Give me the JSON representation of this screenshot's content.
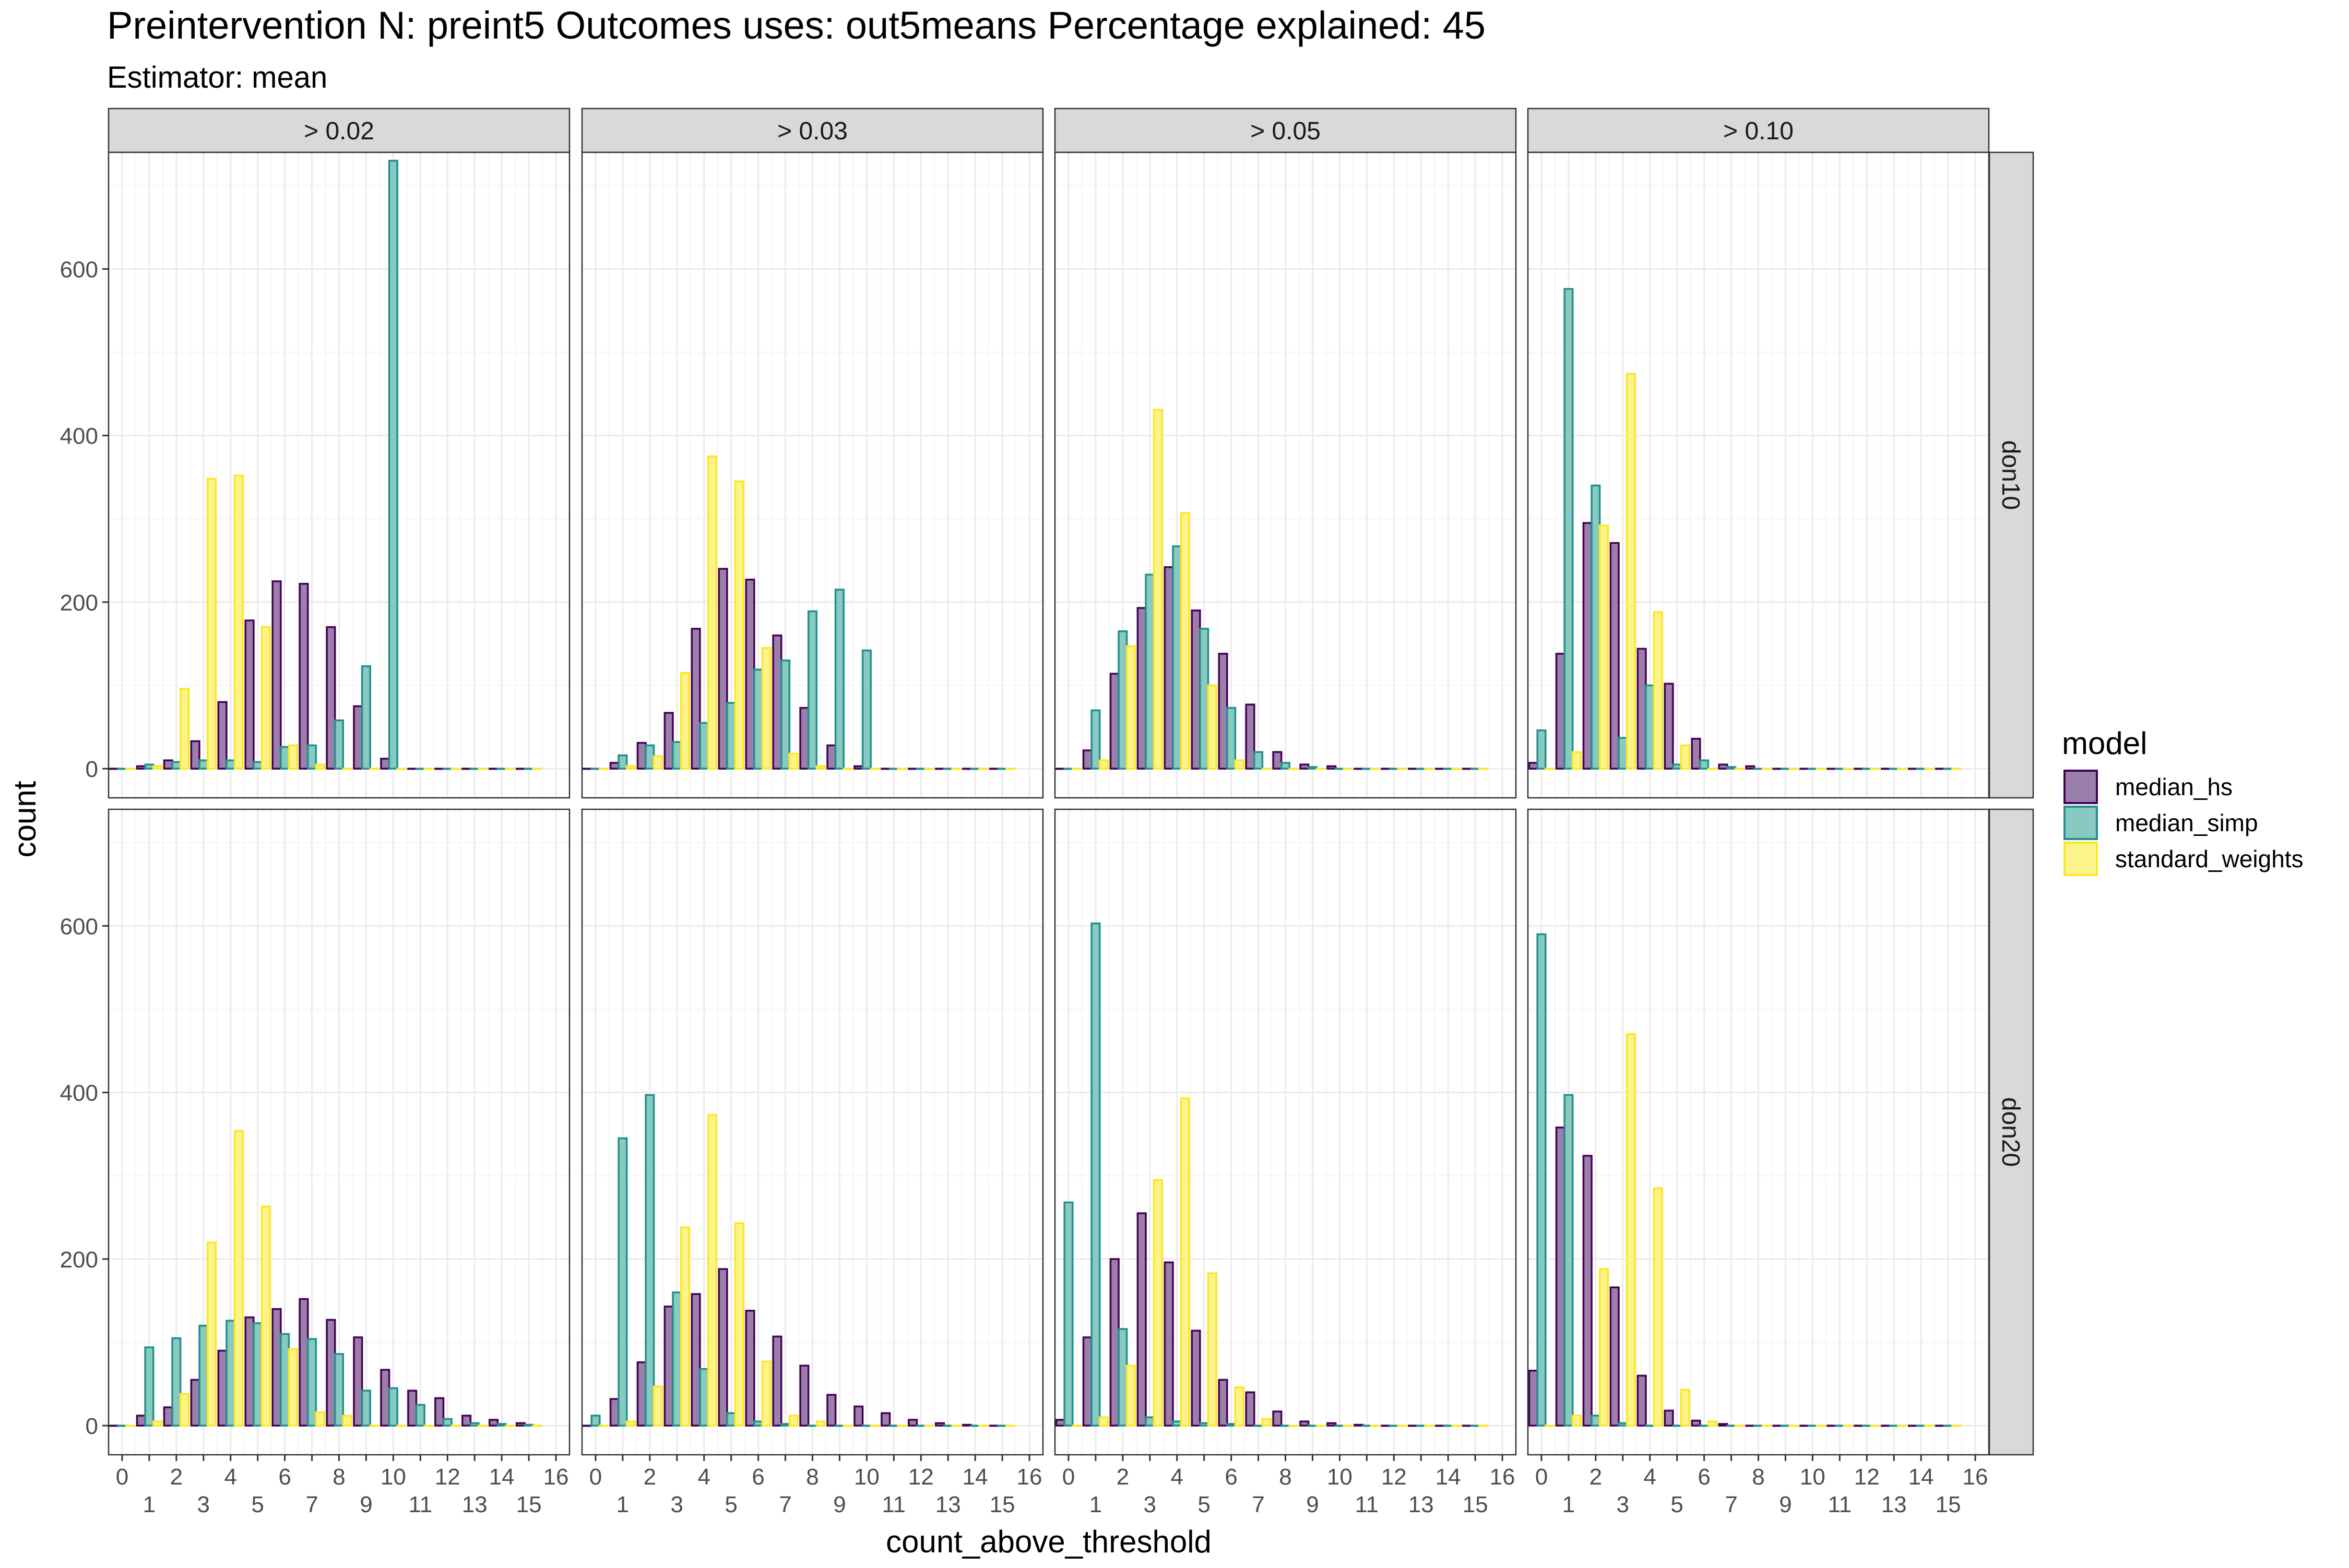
{
  "chart_data": {
    "type": "bar",
    "title": "Preintervention N: preint5 Outcomes uses: out5means Percentage explained: 45",
    "subtitle": "Estimator: mean",
    "xlabel": "count_above_threshold",
    "ylabel": "count",
    "x_ticks": [
      0,
      1,
      2,
      3,
      4,
      5,
      6,
      7,
      8,
      9,
      10,
      11,
      12,
      13,
      14,
      15,
      16
    ],
    "xlim": [
      -0.5,
      16.5
    ],
    "y_ticks": [
      0,
      200,
      400,
      600
    ],
    "ylim": [
      -35,
      740
    ],
    "grid": true,
    "legend": {
      "title": "model",
      "position": "right",
      "entries": [
        "median_hs",
        "median_simp",
        "standard_weights"
      ]
    },
    "colors": {
      "median_hs": {
        "fill": "#9B7FAB",
        "stroke": "#440154"
      },
      "median_simp": {
        "fill": "#88C9C1",
        "stroke": "#21908C"
      },
      "standard_weights": {
        "fill": "#FCF48A",
        "stroke": "#FDE725"
      },
      "strip_bg": "#D9D9D9",
      "panel_border": "#333333",
      "grid_major": "#EBEBEB",
      "grid_minor": "#F5F5F5"
    },
    "columns": [
      "> 0.02",
      "> 0.03",
      "> 0.05",
      "> 0.10"
    ],
    "rows": [
      "don10",
      "don20"
    ],
    "panels": [
      {
        "row": "don10",
        "col": "> 0.02",
        "median_hs": [
          0,
          3,
          10,
          33,
          80,
          178,
          225,
          222,
          170,
          75,
          12,
          0,
          0,
          0,
          0,
          0
        ],
        "median_simp": [
          0,
          5,
          8,
          10,
          10,
          8,
          26,
          28,
          58,
          123,
          730,
          0,
          0,
          0,
          0,
          0
        ],
        "standard_weights": [
          0,
          3,
          96,
          348,
          352,
          170,
          28,
          5,
          0,
          0,
          0,
          0,
          0,
          0,
          0,
          0
        ]
      },
      {
        "row": "don10",
        "col": "> 0.03",
        "median_hs": [
          0,
          7,
          31,
          67,
          168,
          240,
          227,
          160,
          73,
          28,
          3,
          0,
          0,
          0,
          0,
          0
        ],
        "median_simp": [
          0,
          16,
          28,
          32,
          55,
          79,
          119,
          130,
          189,
          215,
          142,
          0,
          0,
          0,
          0,
          0
        ],
        "standard_weights": [
          0,
          3,
          15,
          115,
          375,
          345,
          145,
          18,
          3,
          0,
          0,
          0,
          0,
          0,
          0,
          0
        ]
      },
      {
        "row": "don10",
        "col": "> 0.05",
        "median_hs": [
          0,
          22,
          114,
          193,
          242,
          190,
          138,
          77,
          20,
          5,
          3,
          0,
          0,
          0,
          0,
          0
        ],
        "median_simp": [
          0,
          70,
          165,
          233,
          267,
          168,
          73,
          20,
          7,
          2,
          0,
          0,
          0,
          0,
          0,
          0
        ],
        "standard_weights": [
          0,
          10,
          147,
          431,
          307,
          100,
          10,
          0,
          0,
          0,
          0,
          0,
          0,
          0,
          0,
          0
        ]
      },
      {
        "row": "don10",
        "col": "> 0.10",
        "median_hs": [
          7,
          138,
          295,
          271,
          144,
          102,
          36,
          5,
          3,
          0,
          0,
          0,
          0,
          0,
          0,
          0
        ],
        "median_simp": [
          46,
          576,
          340,
          37,
          100,
          5,
          10,
          2,
          0,
          0,
          0,
          0,
          0,
          0,
          0,
          0
        ],
        "standard_weights": [
          0,
          20,
          292,
          474,
          188,
          28,
          0,
          0,
          0,
          0,
          0,
          0,
          0,
          0,
          0,
          0
        ]
      },
      {
        "row": "don20",
        "col": "> 0.02",
        "median_hs": [
          0,
          12,
          22,
          55,
          90,
          130,
          140,
          152,
          127,
          106,
          67,
          42,
          33,
          12,
          7,
          3
        ],
        "median_simp": [
          0,
          94,
          105,
          120,
          126,
          123,
          110,
          104,
          86,
          42,
          45,
          25,
          8,
          3,
          2,
          1
        ],
        "standard_weights": [
          0,
          5,
          38,
          220,
          354,
          263,
          92,
          16,
          12,
          0,
          0,
          0,
          0,
          0,
          0,
          0
        ]
      },
      {
        "row": "don20",
        "col": "> 0.03",
        "median_hs": [
          0,
          32,
          76,
          143,
          158,
          188,
          138,
          107,
          72,
          37,
          23,
          15,
          7,
          3,
          1,
          0
        ],
        "median_simp": [
          12,
          345,
          397,
          160,
          68,
          15,
          5,
          2,
          0,
          0,
          0,
          0,
          0,
          0,
          0,
          0
        ],
        "standard_weights": [
          0,
          5,
          47,
          238,
          373,
          243,
          77,
          12,
          5,
          0,
          0,
          0,
          0,
          0,
          0,
          0
        ]
      },
      {
        "row": "don20",
        "col": "> 0.05",
        "median_hs": [
          7,
          106,
          200,
          255,
          196,
          114,
          55,
          40,
          17,
          5,
          3,
          1,
          0,
          0,
          0,
          0
        ],
        "median_simp": [
          268,
          603,
          116,
          10,
          5,
          3,
          2,
          0,
          0,
          0,
          0,
          0,
          0,
          0,
          0,
          0
        ],
        "standard_weights": [
          0,
          10,
          72,
          295,
          393,
          183,
          46,
          8,
          0,
          0,
          0,
          0,
          0,
          0,
          0,
          0
        ]
      },
      {
        "row": "don20",
        "col": "> 0.10",
        "median_hs": [
          66,
          358,
          324,
          166,
          60,
          18,
          6,
          2,
          0,
          0,
          0,
          0,
          0,
          0,
          0,
          0
        ],
        "median_simp": [
          590,
          397,
          12,
          3,
          0,
          0,
          0,
          0,
          0,
          0,
          0,
          0,
          0,
          0,
          0,
          0
        ],
        "standard_weights": [
          0,
          12,
          188,
          470,
          285,
          43,
          5,
          0,
          0,
          0,
          0,
          0,
          0,
          0,
          0,
          0
        ]
      }
    ]
  }
}
